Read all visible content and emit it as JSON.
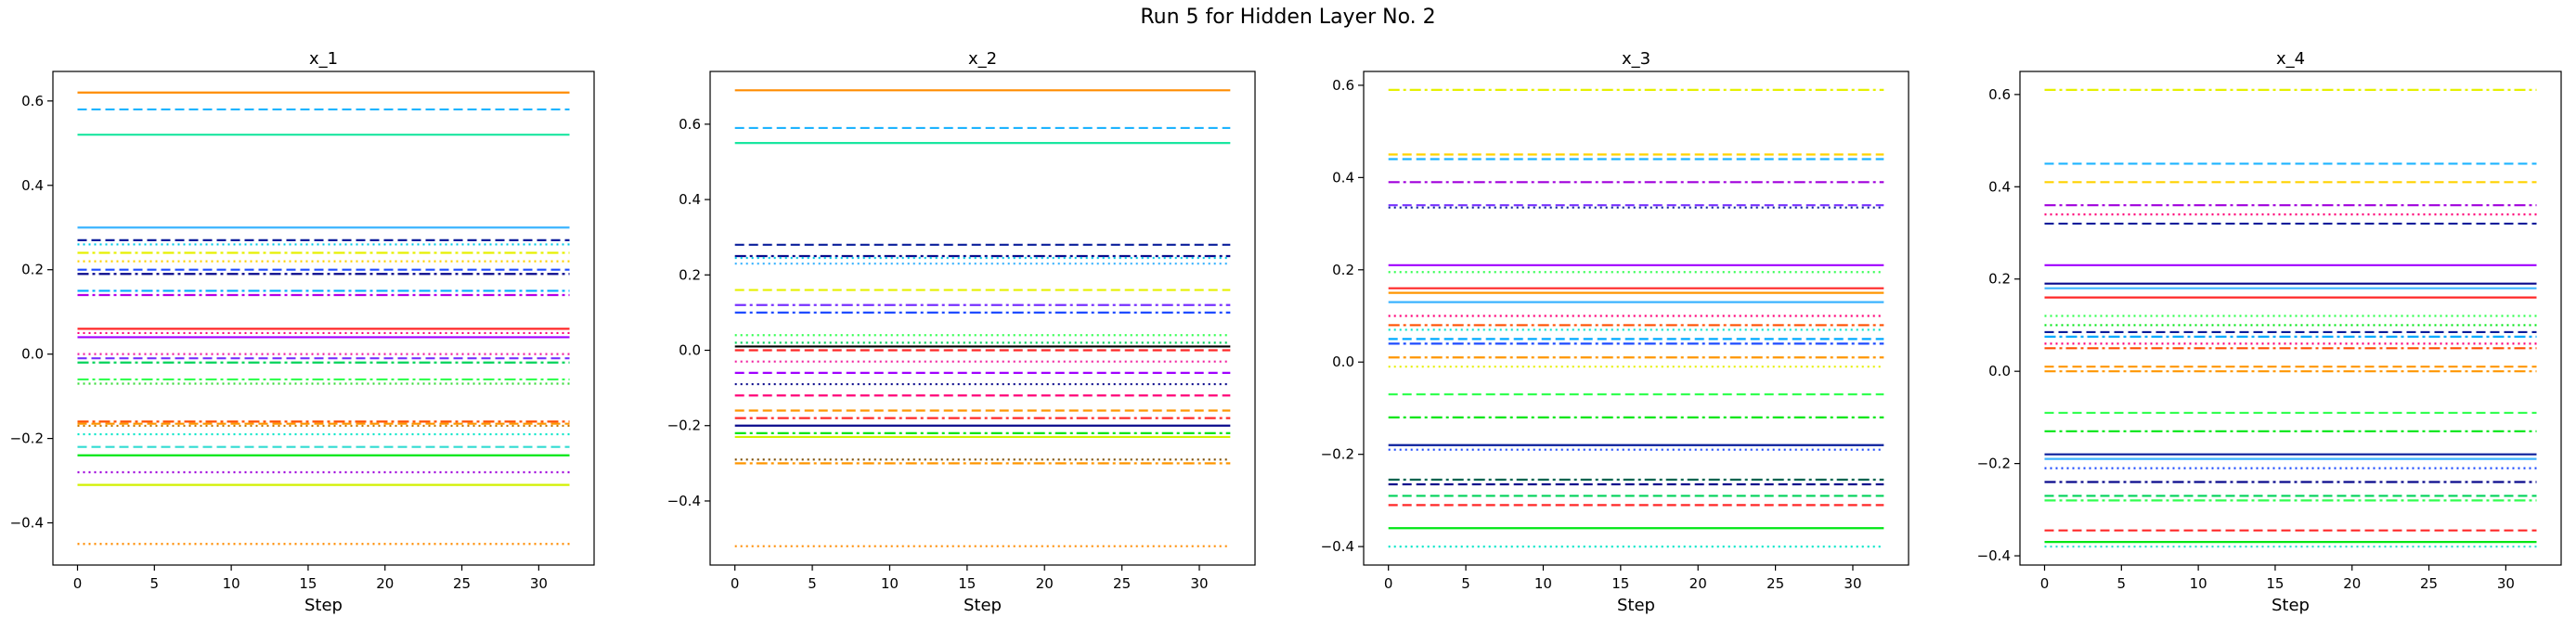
{
  "page_title": "Run 5 for Hidden Layer No. 2",
  "chart_data": [
    {
      "type": "line",
      "title": "x_1",
      "xlabel": "Step",
      "ylabel": "",
      "xlim": [
        -1.6,
        33.6
      ],
      "ylim": [
        -0.5,
        0.67
      ],
      "x_range": [
        0,
        32
      ],
      "x_ticks": [
        0,
        5,
        10,
        15,
        20,
        25,
        30
      ],
      "y_ticks": [
        -0.4,
        -0.2,
        0.0,
        0.2,
        0.4,
        0.6
      ],
      "y_tick_labels": [
        "−0.4",
        "−0.2",
        "0.0",
        "0.2",
        "0.4",
        "0.6"
      ],
      "grid": false,
      "series": [
        {
          "value": 0.62,
          "color": "#ff8c00",
          "style": "solid"
        },
        {
          "value": 0.58,
          "color": "#1eb4ff",
          "style": "dashed"
        },
        {
          "value": 0.52,
          "color": "#19e6a0",
          "style": "solid"
        },
        {
          "value": 0.3,
          "color": "#3cb4ff",
          "style": "solid"
        },
        {
          "value": 0.27,
          "color": "#0a1e9b",
          "style": "dashed"
        },
        {
          "value": 0.26,
          "color": "#00c8e6",
          "style": "dotted"
        },
        {
          "value": 0.24,
          "color": "#e6f000",
          "style": "dashdot"
        },
        {
          "value": 0.22,
          "color": "#ffd200",
          "style": "dotted"
        },
        {
          "value": 0.2,
          "color": "#1e4bff",
          "style": "dashed"
        },
        {
          "value": 0.19,
          "color": "#0a0a8c",
          "style": "dashdot"
        },
        {
          "value": 0.15,
          "color": "#00aaff",
          "style": "dashdot"
        },
        {
          "value": 0.14,
          "color": "#b400e6",
          "style": "dashdot"
        },
        {
          "value": 0.06,
          "color": "#ff2828",
          "style": "solid"
        },
        {
          "value": 0.05,
          "color": "#ff0078",
          "style": "dotted"
        },
        {
          "value": 0.04,
          "color": "#a000ff",
          "style": "solid"
        },
        {
          "value": 0.0,
          "color": "#f01ea0",
          "style": "dotted"
        },
        {
          "value": -0.01,
          "color": "#7832ff",
          "style": "dashed"
        },
        {
          "value": -0.02,
          "color": "#00d25a",
          "style": "dashdot"
        },
        {
          "value": -0.06,
          "color": "#32ff50",
          "style": "dashdot"
        },
        {
          "value": -0.07,
          "color": "#3cdc3c",
          "style": "dotted"
        },
        {
          "value": -0.16,
          "color": "#ff5000",
          "style": "dashdot"
        },
        {
          "value": -0.165,
          "color": "#ff9600",
          "style": "dashed"
        },
        {
          "value": -0.17,
          "color": "#c87800",
          "style": "dotted"
        },
        {
          "value": -0.19,
          "color": "#00e6c8",
          "style": "dotted"
        },
        {
          "value": -0.22,
          "color": "#32dcd2",
          "style": "dashed"
        },
        {
          "value": -0.24,
          "color": "#00e614",
          "style": "solid"
        },
        {
          "value": -0.28,
          "color": "#a000dc",
          "style": "dotted"
        },
        {
          "value": -0.31,
          "color": "#d2f000",
          "style": "solid"
        },
        {
          "value": -0.45,
          "color": "#ff8c00",
          "style": "dotted"
        }
      ]
    },
    {
      "type": "line",
      "title": "x_2",
      "xlabel": "Step",
      "ylabel": "",
      "xlim": [
        -1.6,
        33.6
      ],
      "ylim": [
        -0.57,
        0.74
      ],
      "x_range": [
        0,
        32
      ],
      "x_ticks": [
        0,
        5,
        10,
        15,
        20,
        25,
        30
      ],
      "y_ticks": [
        -0.4,
        -0.2,
        0.0,
        0.2,
        0.4,
        0.6
      ],
      "y_tick_labels": [
        "−0.4",
        "−0.2",
        "0.0",
        "0.2",
        "0.4",
        "0.6"
      ],
      "grid": false,
      "series": [
        {
          "value": 0.69,
          "color": "#ff8c00",
          "style": "solid"
        },
        {
          "value": 0.59,
          "color": "#1eb4ff",
          "style": "dashed"
        },
        {
          "value": 0.55,
          "color": "#19e6a0",
          "style": "solid"
        },
        {
          "value": 0.28,
          "color": "#0a1e9b",
          "style": "dashed"
        },
        {
          "value": 0.25,
          "color": "#0a0a8c",
          "style": "dashdot"
        },
        {
          "value": 0.245,
          "color": "#00c8e6",
          "style": "dotted"
        },
        {
          "value": 0.23,
          "color": "#3cb4ff",
          "style": "dotted"
        },
        {
          "value": 0.16,
          "color": "#e6f000",
          "style": "dashed"
        },
        {
          "value": 0.12,
          "color": "#7832ff",
          "style": "dashdot"
        },
        {
          "value": 0.1,
          "color": "#1e4bff",
          "style": "dashdot"
        },
        {
          "value": 0.04,
          "color": "#32ff50",
          "style": "dotted"
        },
        {
          "value": 0.02,
          "color": "#00d25a",
          "style": "dotted"
        },
        {
          "value": 0.01,
          "color": "#000000",
          "style": "solid"
        },
        {
          "value": 0.0,
          "color": "#ff2828",
          "style": "dashed"
        },
        {
          "value": -0.03,
          "color": "#f01ea0",
          "style": "dotted"
        },
        {
          "value": -0.06,
          "color": "#a000ff",
          "style": "dashed"
        },
        {
          "value": -0.09,
          "color": "#0a0a8c",
          "style": "dotted"
        },
        {
          "value": -0.12,
          "color": "#ff0078",
          "style": "dashed"
        },
        {
          "value": -0.16,
          "color": "#ff9600",
          "style": "dashed"
        },
        {
          "value": -0.18,
          "color": "#ff2828",
          "style": "dashdot"
        },
        {
          "value": -0.2,
          "color": "#0a0a8c",
          "style": "solid"
        },
        {
          "value": -0.22,
          "color": "#00e614",
          "style": "dashdot"
        },
        {
          "value": -0.23,
          "color": "#d2f000",
          "style": "solid"
        },
        {
          "value": -0.29,
          "color": "#7a4b00",
          "style": "dotted"
        },
        {
          "value": -0.3,
          "color": "#ff9600",
          "style": "dashdot"
        },
        {
          "value": -0.52,
          "color": "#ff8c00",
          "style": "dotted"
        }
      ]
    },
    {
      "type": "line",
      "title": "x_3",
      "xlabel": "Step",
      "ylabel": "",
      "xlim": [
        -1.6,
        33.6
      ],
      "ylim": [
        -0.44,
        0.63
      ],
      "x_range": [
        0,
        32
      ],
      "x_ticks": [
        0,
        5,
        10,
        15,
        20,
        25,
        30
      ],
      "y_ticks": [
        -0.4,
        -0.2,
        0.0,
        0.2,
        0.4,
        0.6
      ],
      "y_tick_labels": [
        "−0.4",
        "−0.2",
        "0.0",
        "0.2",
        "0.4",
        "0.6"
      ],
      "grid": false,
      "series": [
        {
          "value": 0.59,
          "color": "#e6f000",
          "style": "dashdot"
        },
        {
          "value": 0.45,
          "color": "#ffd200",
          "style": "dashed"
        },
        {
          "value": 0.44,
          "color": "#1eb4ff",
          "style": "dashed"
        },
        {
          "value": 0.39,
          "color": "#a000dc",
          "style": "dashdot"
        },
        {
          "value": 0.34,
          "color": "#7832ff",
          "style": "dashed"
        },
        {
          "value": 0.335,
          "color": "#0a1e9b",
          "style": "dotted"
        },
        {
          "value": 0.21,
          "color": "#a000ff",
          "style": "solid"
        },
        {
          "value": 0.195,
          "color": "#32ff50",
          "style": "dotted"
        },
        {
          "value": 0.16,
          "color": "#ff2828",
          "style": "solid"
        },
        {
          "value": 0.15,
          "color": "#ff9600",
          "style": "solid"
        },
        {
          "value": 0.13,
          "color": "#3cb4ff",
          "style": "solid"
        },
        {
          "value": 0.1,
          "color": "#ff0078",
          "style": "dotted"
        },
        {
          "value": 0.08,
          "color": "#ff5000",
          "style": "dashdot"
        },
        {
          "value": 0.07,
          "color": "#00e6c8",
          "style": "dotted"
        },
        {
          "value": 0.05,
          "color": "#00aaff",
          "style": "dashed"
        },
        {
          "value": 0.04,
          "color": "#1e4bff",
          "style": "dashdot"
        },
        {
          "value": 0.01,
          "color": "#ff9600",
          "style": "dashdot"
        },
        {
          "value": -0.01,
          "color": "#e6f000",
          "style": "dotted"
        },
        {
          "value": -0.07,
          "color": "#32ff50",
          "style": "dashed"
        },
        {
          "value": -0.12,
          "color": "#00e614",
          "style": "dashdot"
        },
        {
          "value": -0.18,
          "color": "#0a1e9b",
          "style": "solid"
        },
        {
          "value": -0.19,
          "color": "#1e4bff",
          "style": "dotted"
        },
        {
          "value": -0.255,
          "color": "#006450",
          "style": "dashdot"
        },
        {
          "value": -0.265,
          "color": "#0a0a8c",
          "style": "dashed"
        },
        {
          "value": -0.29,
          "color": "#00d25a",
          "style": "dashed"
        },
        {
          "value": -0.31,
          "color": "#ff2828",
          "style": "dashed"
        },
        {
          "value": -0.36,
          "color": "#00e614",
          "style": "solid"
        },
        {
          "value": -0.4,
          "color": "#00e6c8",
          "style": "dotted"
        }
      ]
    },
    {
      "type": "line",
      "title": "x_4",
      "xlabel": "Step",
      "ylabel": "",
      "xlim": [
        -1.6,
        33.6
      ],
      "ylim": [
        -0.42,
        0.65
      ],
      "x_range": [
        0,
        32
      ],
      "x_ticks": [
        0,
        5,
        10,
        15,
        20,
        25,
        30
      ],
      "y_ticks": [
        -0.4,
        -0.2,
        0.0,
        0.2,
        0.4,
        0.6
      ],
      "y_tick_labels": [
        "−0.4",
        "−0.2",
        "0.0",
        "0.2",
        "0.4",
        "0.6"
      ],
      "grid": false,
      "series": [
        {
          "value": 0.61,
          "color": "#e6f000",
          "style": "dashdot"
        },
        {
          "value": 0.45,
          "color": "#1eb4ff",
          "style": "dashed"
        },
        {
          "value": 0.41,
          "color": "#ffd200",
          "style": "dashed"
        },
        {
          "value": 0.36,
          "color": "#a000dc",
          "style": "dashdot"
        },
        {
          "value": 0.34,
          "color": "#ff0078",
          "style": "dotted"
        },
        {
          "value": 0.32,
          "color": "#0a1e9b",
          "style": "dashed"
        },
        {
          "value": 0.23,
          "color": "#a000ff",
          "style": "solid"
        },
        {
          "value": 0.19,
          "color": "#0a0a8c",
          "style": "solid"
        },
        {
          "value": 0.18,
          "color": "#3cb4ff",
          "style": "solid"
        },
        {
          "value": 0.16,
          "color": "#ff2828",
          "style": "solid"
        },
        {
          "value": 0.12,
          "color": "#32ff50",
          "style": "dotted"
        },
        {
          "value": 0.1,
          "color": "#00e614",
          "style": "dotted"
        },
        {
          "value": 0.085,
          "color": "#0a1e9b",
          "style": "dashed"
        },
        {
          "value": 0.075,
          "color": "#00aaff",
          "style": "dashdot"
        },
        {
          "value": 0.06,
          "color": "#ff0078",
          "style": "dotted"
        },
        {
          "value": 0.05,
          "color": "#ff5000",
          "style": "dashdot"
        },
        {
          "value": 0.01,
          "color": "#ff9600",
          "style": "dashed"
        },
        {
          "value": 0.0,
          "color": "#ff9600",
          "style": "dashdot"
        },
        {
          "value": -0.09,
          "color": "#32ff50",
          "style": "dashed"
        },
        {
          "value": -0.13,
          "color": "#00e614",
          "style": "dashdot"
        },
        {
          "value": -0.18,
          "color": "#0a1e9b",
          "style": "solid"
        },
        {
          "value": -0.19,
          "color": "#3cb4ff",
          "style": "solid"
        },
        {
          "value": -0.21,
          "color": "#1e4bff",
          "style": "dotted"
        },
        {
          "value": -0.24,
          "color": "#0a0a8c",
          "style": "dashdot"
        },
        {
          "value": -0.27,
          "color": "#00d25a",
          "style": "dashed"
        },
        {
          "value": -0.28,
          "color": "#32ff50",
          "style": "dashdot"
        },
        {
          "value": -0.345,
          "color": "#ff2828",
          "style": "dashed"
        },
        {
          "value": -0.37,
          "color": "#00e614",
          "style": "solid"
        },
        {
          "value": -0.38,
          "color": "#32dcd2",
          "style": "dotted"
        }
      ]
    }
  ]
}
